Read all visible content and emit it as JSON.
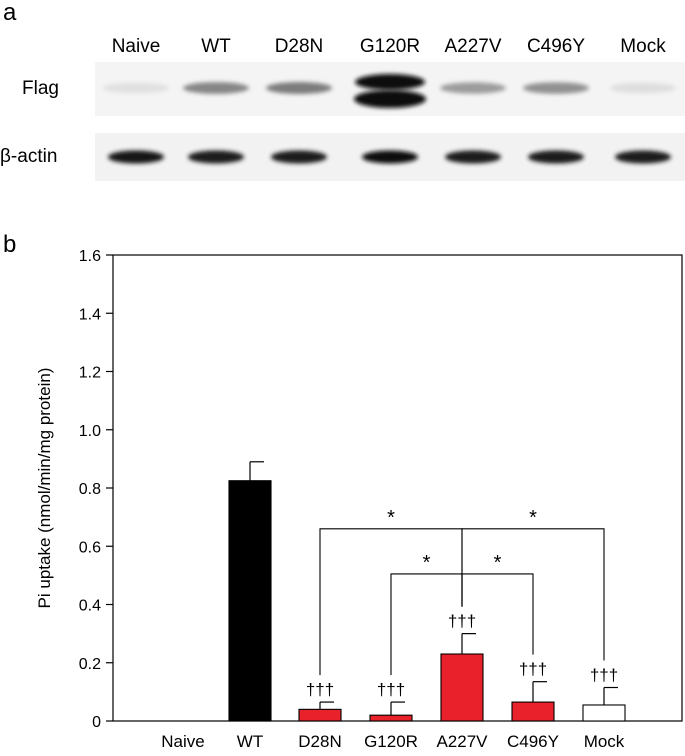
{
  "panel_a": {
    "label": "a",
    "lanes": [
      "Naive",
      "WT",
      "D28N",
      "G120R",
      "A227V",
      "C496Y",
      "Mock"
    ],
    "rows": [
      "Flag",
      "β-actin"
    ],
    "band_intensity": {
      "Flag": [
        0.05,
        0.45,
        0.5,
        1.0,
        0.35,
        0.4,
        0.06
      ],
      "β-actin": [
        0.95,
        0.92,
        0.93,
        0.97,
        0.93,
        0.93,
        0.92
      ]
    }
  },
  "panel_b": {
    "label": "b"
  },
  "chart_data": {
    "type": "bar",
    "ylabel": "Pi uptake (nmol/min/mg protein)",
    "xlabel": "",
    "ylim": [
      0,
      1.6
    ],
    "yticks": [
      "0",
      "0.2",
      "0.4",
      "0.6",
      "0.8",
      "1.0",
      "1.2",
      "1.4",
      "1.6"
    ],
    "categories": [
      "Naive",
      "WT",
      "D28N",
      "G120R",
      "A227V",
      "C496Y",
      "Mock"
    ],
    "values": [
      0.0,
      0.825,
      0.04,
      0.02,
      0.23,
      0.065,
      0.055
    ],
    "errors": [
      0.0,
      0.065,
      0.025,
      0.045,
      0.07,
      0.07,
      0.06
    ],
    "colors": [
      "#ffffff",
      "#000000",
      "#e8212b",
      "#e8212b",
      "#e8212b",
      "#e8212b",
      "#ffffff"
    ],
    "annotations": [
      "",
      "",
      "†††",
      "†††",
      "†††",
      "†††",
      "†††"
    ],
    "grid": false,
    "comparisons": [
      {
        "from": "D28N",
        "to": "A227V",
        "label": "*",
        "level": 0.66
      },
      {
        "from": "A227V",
        "to": "Mock",
        "label": "*",
        "level": 0.66
      },
      {
        "from": "G120R",
        "to": "A227V",
        "label": "*",
        "level": 0.505
      },
      {
        "from": "A227V",
        "to": "C496Y",
        "label": "*",
        "level": 0.505
      }
    ]
  }
}
